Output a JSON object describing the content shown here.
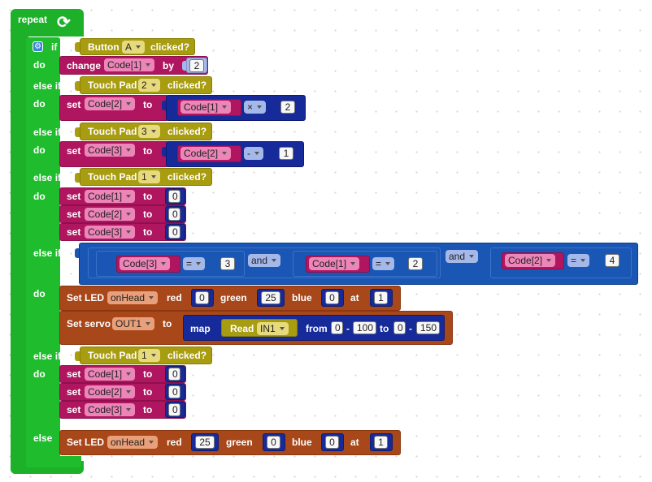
{
  "repeat": {
    "label": "repeat"
  },
  "kw": {
    "if": "if",
    "do": "do",
    "else_if": "else if",
    "else": "else",
    "clicked": "clicked?",
    "change": "change",
    "by": "by",
    "set": "set",
    "to": "to",
    "and": "and",
    "Set_LED": "Set LED",
    "red": "red",
    "green": "green",
    "blue": "blue",
    "at": "at",
    "Set_servo": "Set servo",
    "map": "map",
    "Read": "Read",
    "from": "from",
    "dash": "-"
  },
  "values": {
    "button_A": "Button",
    "A": "A",
    "touch_pad": "Touch Pad",
    "tp2": "2",
    "tp3": "3",
    "tp1": "1",
    "code1": "Code[1]",
    "code2": "Code[2]",
    "code3": "Code[3]",
    "n0": "0",
    "n1": "1",
    "n2": "2",
    "n3": "3",
    "n4": "4",
    "n25": "25",
    "n100": "100",
    "n150": "150",
    "times": "×",
    "minus": "-",
    "eq": "=",
    "onHead": "onHead",
    "OUT1": "OUT1",
    "IN1": "IN1"
  },
  "colors": {
    "control": "#1db12a",
    "event": "#a89c10",
    "variable": "#b01660",
    "math": "#162a99",
    "logic": "#1a56b3",
    "output": "#a8471a"
  }
}
